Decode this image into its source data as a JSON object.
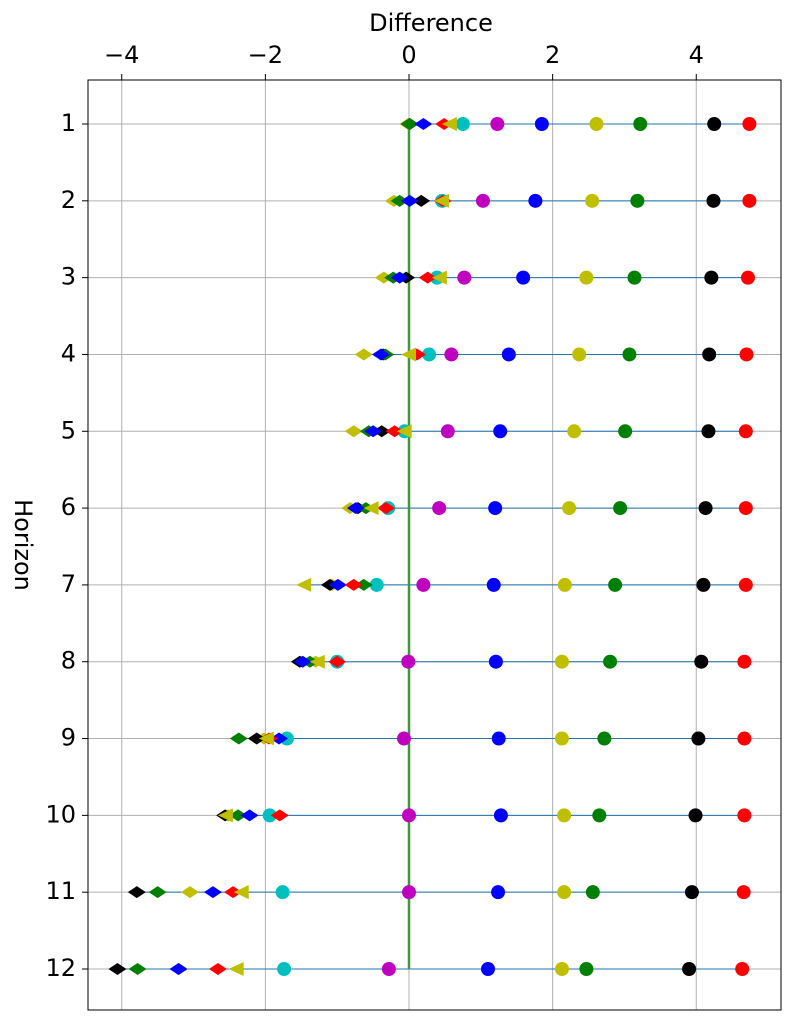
{
  "chart_data": {
    "type": "dot",
    "xlabel": "Difference",
    "ylabel": "Horizon",
    "categories": [
      "1",
      "2",
      "3",
      "4",
      "5",
      "6",
      "7",
      "8",
      "9",
      "10",
      "11",
      "12"
    ],
    "xlim": [
      -4.47,
      5.18
    ],
    "xticks": [
      {
        "value": -4,
        "label": "−4"
      },
      {
        "value": -2,
        "label": "−2"
      },
      0,
      2,
      4
    ],
    "grid": true,
    "vline": 0,
    "vline_color": "#3a9a3a",
    "row_line_color": "#1f77b4",
    "series": [
      {
        "marker": "circle",
        "color": "#ff0000",
        "values": [
          4.74,
          4.74,
          4.72,
          4.7,
          4.69,
          4.69,
          4.69,
          4.67,
          4.67,
          4.67,
          4.66,
          4.64
        ]
      },
      {
        "marker": "circle",
        "color": "#000000",
        "values": [
          4.25,
          4.24,
          4.21,
          4.18,
          4.17,
          4.13,
          4.1,
          4.07,
          4.03,
          3.99,
          3.94,
          3.9
        ]
      },
      {
        "marker": "circle",
        "color": "#008000",
        "values": [
          3.22,
          3.18,
          3.14,
          3.07,
          3.01,
          2.94,
          2.87,
          2.8,
          2.72,
          2.65,
          2.56,
          2.47
        ]
      },
      {
        "marker": "circle",
        "color": "#bfbf00",
        "values": [
          2.61,
          2.55,
          2.47,
          2.37,
          2.3,
          2.23,
          2.17,
          2.13,
          2.13,
          2.16,
          2.16,
          2.13
        ]
      },
      {
        "marker": "circle",
        "color": "#0000ff",
        "values": [
          1.85,
          1.76,
          1.59,
          1.39,
          1.27,
          1.2,
          1.18,
          1.21,
          1.25,
          1.28,
          1.24,
          1.1
        ]
      },
      {
        "marker": "circle",
        "color": "#bf00bf",
        "values": [
          1.23,
          1.03,
          0.77,
          0.59,
          0.54,
          0.42,
          0.2,
          -0.01,
          -0.07,
          0,
          0,
          -0.28
        ]
      },
      {
        "marker": "circle",
        "color": "#00bfbf",
        "values": [
          0.75,
          0.46,
          0.39,
          0.28,
          -0.06,
          -0.29,
          -0.45,
          -1.0,
          -1.7,
          -1.94,
          -1.76,
          -1.74
        ]
      },
      {
        "marker": "diamond",
        "color": "#bfbf00",
        "values": [
          -0.01,
          -0.21,
          -0.35,
          -0.63,
          -0.77,
          -0.82,
          -1.07,
          -1.3,
          -2.02,
          -2.52,
          -3.05,
          -3.2
        ]
      },
      {
        "marker": "diamond",
        "color": "#000000",
        "values": [
          0.01,
          0.17,
          -0.04,
          -0.36,
          -0.38,
          -0.71,
          -1.1,
          -1.52,
          -2.12,
          -2.56,
          -3.79,
          -4.06
        ]
      },
      {
        "marker": "diamond",
        "color": "#008000",
        "values": [
          0.01,
          -0.13,
          -0.22,
          -0.33,
          -0.56,
          -0.6,
          -0.63,
          -1.38,
          -2.37,
          -2.38,
          -3.5,
          -3.78
        ]
      },
      {
        "marker": "diamond",
        "color": "#0000ff",
        "values": [
          0.2,
          0.01,
          -0.13,
          -0.39,
          -0.5,
          -0.74,
          -0.99,
          -1.48,
          -1.81,
          -2.22,
          -2.73,
          -3.21
        ]
      },
      {
        "marker": "diamond",
        "color": "#ff0000",
        "values": [
          0.49,
          0.47,
          0.26,
          0.11,
          -0.2,
          -0.32,
          -0.77,
          -1.0,
          -1.95,
          -1.8,
          -2.45,
          -2.66
        ]
      },
      {
        "marker": "triangle-left",
        "color": "#bfbf00",
        "values": [
          0.57,
          0.46,
          0.43,
          0.0,
          -0.06,
          -0.52,
          -1.46,
          -1.27,
          -1.98,
          -2.55,
          -2.33,
          -2.4
        ]
      }
    ]
  }
}
